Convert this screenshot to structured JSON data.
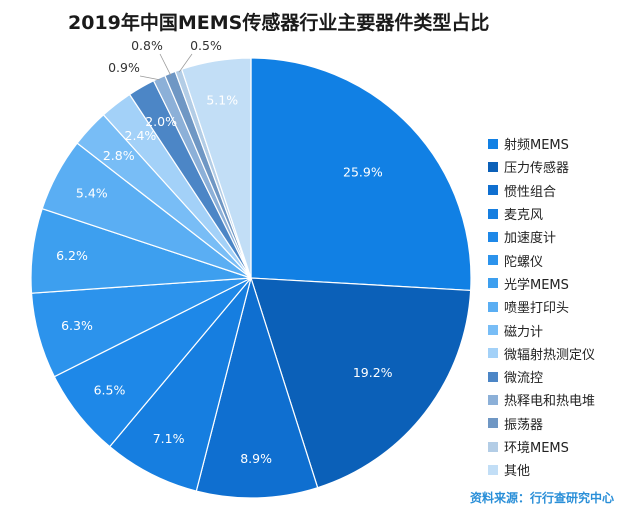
{
  "chart_data": {
    "type": "pie",
    "title": "2019年中国MEMS传感器行业主要器件类型占比",
    "slices": [
      {
        "name": "射频MEMS",
        "value": 25.9,
        "label": "25.9%",
        "color": "#1180e4"
      },
      {
        "name": "压力传感器",
        "value": 19.2,
        "label": "19.2%",
        "color": "#0b60b8"
      },
      {
        "name": "惯性组合",
        "value": 8.9,
        "label": "8.9%",
        "color": "#0f6fd0"
      },
      {
        "name": "麦克风",
        "value": 7.1,
        "label": "7.1%",
        "color": "#167ee0"
      },
      {
        "name": "加速度计",
        "value": 6.5,
        "label": "6.5%",
        "color": "#1e88e8"
      },
      {
        "name": "陀螺仪",
        "value": 6.3,
        "label": "6.3%",
        "color": "#2c93ec"
      },
      {
        "name": "光学MEMS",
        "value": 6.2,
        "label": "6.2%",
        "color": "#3d9fef"
      },
      {
        "name": "喷墨打印头",
        "value": 5.4,
        "label": "5.4%",
        "color": "#5aaef3"
      },
      {
        "name": "磁力计",
        "value": 2.8,
        "label": "2.8%",
        "color": "#78bdf6"
      },
      {
        "name": "微辐射热测定仪",
        "value": 2.4,
        "label": "2.4%",
        "color": "#a3d1f8"
      },
      {
        "name": "微流控",
        "value": 2.0,
        "label": "2.0%",
        "color": "#4c86c6"
      },
      {
        "name": "热释电和热电堆",
        "value": 0.9,
        "label": "0.9%",
        "color": "#8cb0d8"
      },
      {
        "name": "振荡器",
        "value": 0.8,
        "label": "0.8%",
        "color": "#6f97c4"
      },
      {
        "name": "环境MEMS",
        "value": 0.5,
        "label": "0.5%",
        "color": "#b3cde6"
      },
      {
        "name": "其他",
        "value": 5.1,
        "label": "5.1%",
        "color": "#c2def6"
      }
    ],
    "legend_position": "right"
  },
  "source": "资料来源：行行查研究中心"
}
